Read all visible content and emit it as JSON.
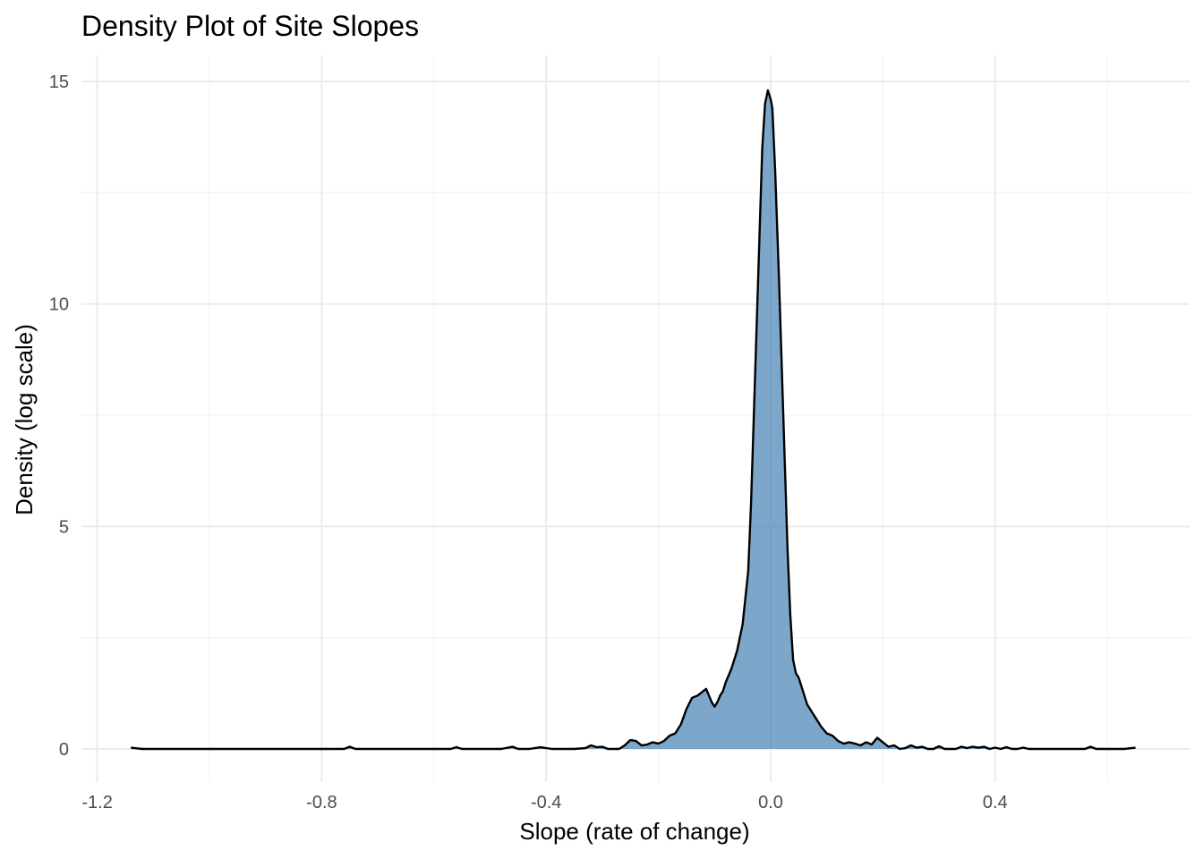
{
  "chart_data": {
    "type": "area",
    "title": "Density Plot of Site Slopes",
    "xlabel": "Slope (rate of change)",
    "ylabel": "Density (log scale)",
    "xlim": [
      -1.2,
      0.65
    ],
    "ylim": [
      0,
      15
    ],
    "x_ticks": [
      {
        "value": -1.2,
        "label": "-1.2"
      },
      {
        "value": -0.8,
        "label": "-0.8"
      },
      {
        "value": -0.4,
        "label": "-0.4"
      },
      {
        "value": 0.0,
        "label": "0.0"
      },
      {
        "value": 0.4,
        "label": "0.4"
      }
    ],
    "y_ticks": [
      {
        "value": 0,
        "label": "0"
      },
      {
        "value": 5,
        "label": "5"
      },
      {
        "value": 10,
        "label": "10"
      },
      {
        "value": 15,
        "label": "15"
      }
    ],
    "grid": true,
    "fill_color": "#4682b4",
    "line_color": "#000000",
    "series": [
      {
        "x": [
          -1.14,
          -1.12,
          -1.0,
          -0.9,
          -0.8,
          -0.76,
          -0.75,
          -0.74,
          -0.72,
          -0.6,
          -0.57,
          -0.56,
          -0.55,
          -0.5,
          -0.48,
          -0.46,
          -0.45,
          -0.43,
          -0.41,
          -0.39,
          -0.38,
          -0.36,
          -0.35,
          -0.33,
          -0.32,
          -0.31,
          -0.3,
          -0.29,
          -0.28,
          -0.27,
          -0.26,
          -0.25,
          -0.24,
          -0.23,
          -0.22,
          -0.21,
          -0.2,
          -0.19,
          -0.18,
          -0.17,
          -0.16,
          -0.15,
          -0.14,
          -0.13,
          -0.12,
          -0.115,
          -0.11,
          -0.105,
          -0.1,
          -0.095,
          -0.09,
          -0.085,
          -0.08,
          -0.07,
          -0.06,
          -0.05,
          -0.04,
          -0.035,
          -0.03,
          -0.025,
          -0.02,
          -0.015,
          -0.01,
          -0.005,
          0.0,
          0.003,
          0.008,
          0.015,
          0.02,
          0.025,
          0.03,
          0.035,
          0.04,
          0.045,
          0.05,
          0.055,
          0.06,
          0.065,
          0.07,
          0.075,
          0.08,
          0.09,
          0.1,
          0.11,
          0.12,
          0.13,
          0.14,
          0.15,
          0.16,
          0.17,
          0.18,
          0.19,
          0.2,
          0.21,
          0.22,
          0.23,
          0.24,
          0.25,
          0.26,
          0.27,
          0.28,
          0.29,
          0.3,
          0.31,
          0.32,
          0.33,
          0.34,
          0.35,
          0.36,
          0.37,
          0.38,
          0.39,
          0.4,
          0.41,
          0.42,
          0.43,
          0.44,
          0.45,
          0.46,
          0.5,
          0.55,
          0.56,
          0.57,
          0.58,
          0.6,
          0.63,
          0.65
        ],
        "y": [
          0.03,
          0.0,
          0.0,
          0.0,
          0.0,
          0.0,
          0.05,
          0.0,
          0.0,
          0.0,
          0.0,
          0.04,
          0.0,
          0.0,
          0.0,
          0.05,
          0.0,
          0.0,
          0.04,
          0.0,
          0.0,
          0.0,
          0.0,
          0.02,
          0.08,
          0.04,
          0.05,
          0.0,
          0.0,
          0.0,
          0.08,
          0.2,
          0.18,
          0.08,
          0.1,
          0.15,
          0.12,
          0.18,
          0.3,
          0.35,
          0.55,
          0.9,
          1.15,
          1.2,
          1.3,
          1.35,
          1.2,
          1.05,
          0.95,
          1.05,
          1.2,
          1.3,
          1.5,
          1.8,
          2.2,
          2.8,
          4.0,
          5.5,
          7.5,
          9.5,
          11.5,
          13.5,
          14.5,
          14.8,
          14.6,
          14.4,
          13.0,
          10.5,
          8.5,
          6.5,
          4.5,
          3.0,
          2.0,
          1.7,
          1.6,
          1.4,
          1.2,
          1.0,
          0.9,
          0.8,
          0.7,
          0.5,
          0.35,
          0.3,
          0.18,
          0.12,
          0.15,
          0.12,
          0.08,
          0.15,
          0.1,
          0.25,
          0.15,
          0.05,
          0.08,
          0.0,
          0.02,
          0.08,
          0.03,
          0.05,
          0.0,
          0.0,
          0.06,
          0.0,
          0.0,
          0.0,
          0.05,
          0.02,
          0.05,
          0.03,
          0.05,
          0.0,
          0.03,
          0.0,
          0.04,
          0.0,
          0.0,
          0.03,
          0.0,
          0.0,
          0.0,
          0.0,
          0.05,
          0.0,
          0.0,
          0.0,
          0.03
        ]
      }
    ]
  }
}
